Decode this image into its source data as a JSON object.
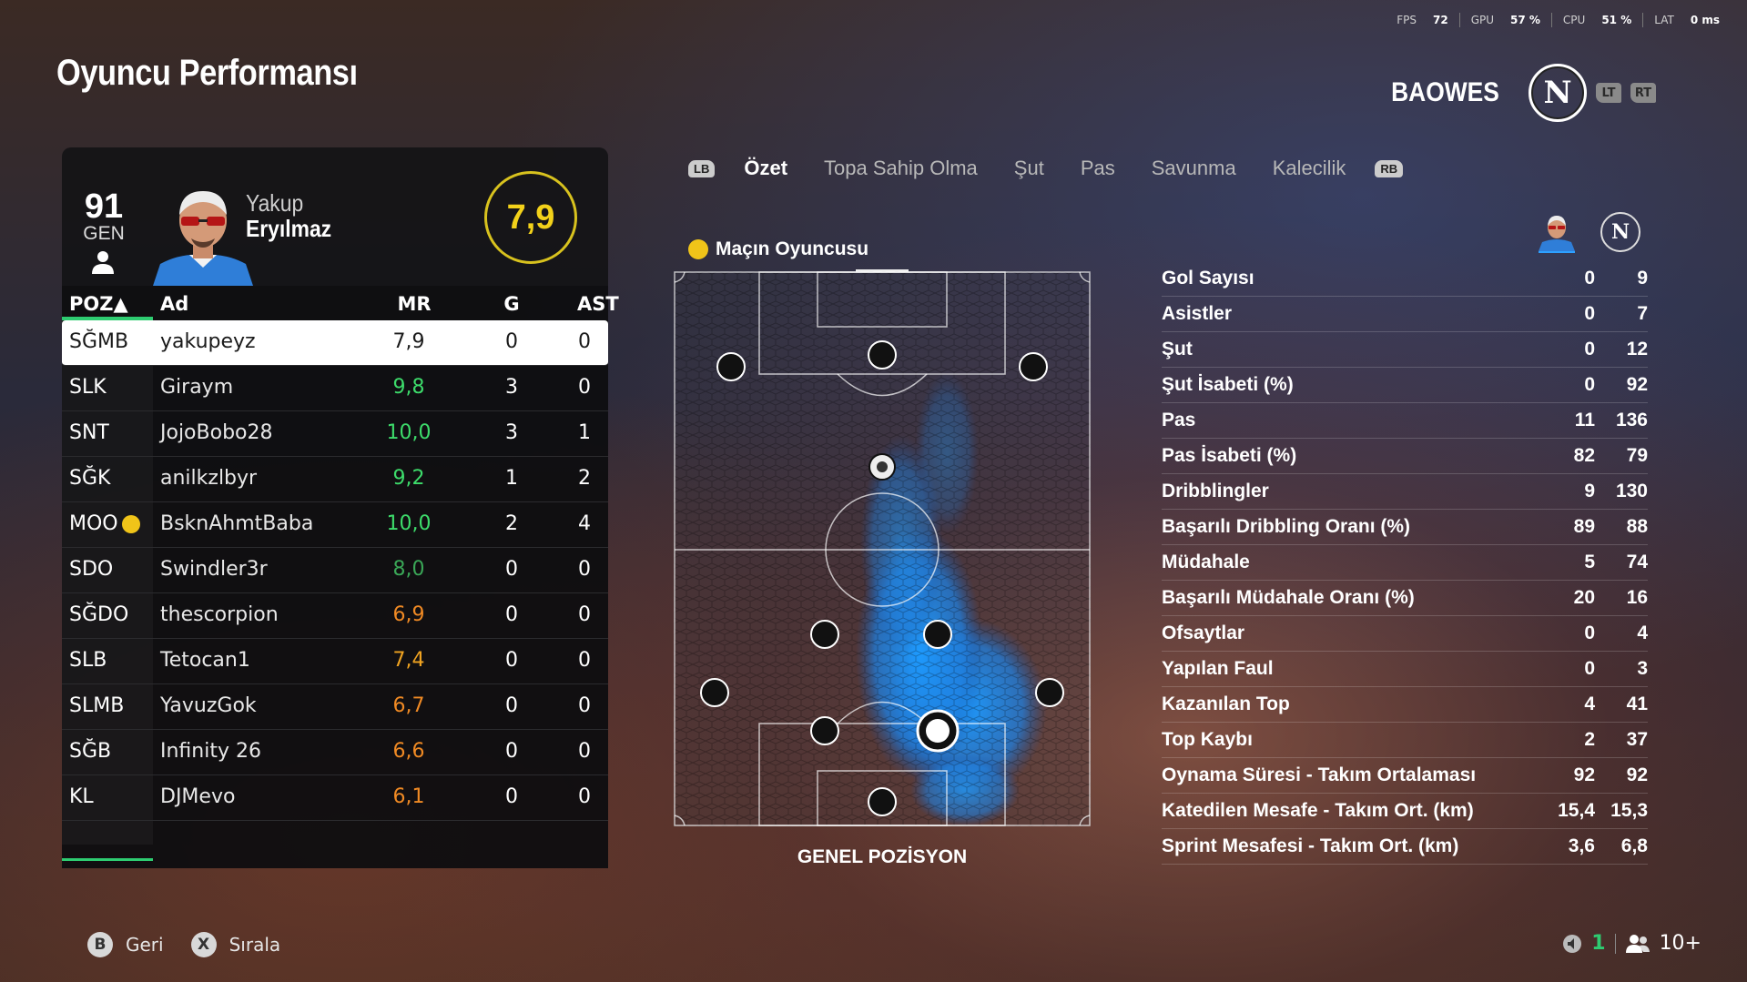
{
  "perf": {
    "fps_label": "FPS",
    "fps": "72",
    "gpu_label": "GPU",
    "gpu": "57 %",
    "cpu_label": "CPU",
    "cpu": "51 %",
    "lat_label": "LAT",
    "lat": "0 ms"
  },
  "page_title": "Oyuncu Performansı",
  "club": {
    "name": "BAOWES",
    "logo_letter": "N",
    "lt": "LT",
    "rt": "RT"
  },
  "player": {
    "overall": "91",
    "overall_label": "GEN",
    "first_name": "Yakup",
    "last_name": "Eryılmaz",
    "rating": "7,9"
  },
  "table": {
    "headers": {
      "pos": "POZ▲",
      "name": "Ad",
      "mr": "MR",
      "g": "G",
      "ast": "AST"
    },
    "rows": [
      {
        "pos": "SĞMB",
        "name": "yakupeyz",
        "mr": "7,9",
        "g": "0",
        "ast": "0",
        "color": "#1a1a1a"
      },
      {
        "pos": "SLK",
        "name": "Giraym",
        "mr": "9,8",
        "g": "3",
        "ast": "0",
        "color": "#3ddc6b"
      },
      {
        "pos": "SNT",
        "name": "JojoBobo28",
        "mr": "10,0",
        "g": "3",
        "ast": "1",
        "color": "#3ddc6b"
      },
      {
        "pos": "SĞK",
        "name": "anilkzlbyr",
        "mr": "9,2",
        "g": "1",
        "ast": "2",
        "color": "#3ddc6b"
      },
      {
        "pos": "MOO",
        "name": "BsknAhmtBaba",
        "mr": "10,0",
        "g": "2",
        "ast": "4",
        "color": "#3ddc6b"
      },
      {
        "pos": "SDO",
        "name": "Swindler3r",
        "mr": "8,0",
        "g": "0",
        "ast": "0",
        "color": "#3aa757"
      },
      {
        "pos": "SĞDO",
        "name": "thescorpion",
        "mr": "6,9",
        "g": "0",
        "ast": "0",
        "color": "#f08a24"
      },
      {
        "pos": "SLB",
        "name": "Tetocan1",
        "mr": "7,4",
        "g": "0",
        "ast": "0",
        "color": "#f0a321"
      },
      {
        "pos": "SLMB",
        "name": "YavuzGok",
        "mr": "6,7",
        "g": "0",
        "ast": "0",
        "color": "#f08a24"
      },
      {
        "pos": "SĞB",
        "name": "Infinity 26",
        "mr": "6,6",
        "g": "0",
        "ast": "0",
        "color": "#f08a24"
      },
      {
        "pos": "KL",
        "name": "DJMevo",
        "mr": "6,1",
        "g": "0",
        "ast": "0",
        "color": "#f08a24"
      }
    ]
  },
  "tabs": {
    "lb": "LB",
    "rb": "RB",
    "items": [
      "Özet",
      "Topa Sahip Olma",
      "Şut",
      "Pas",
      "Savunma",
      "Kalecilik"
    ]
  },
  "motm_label": "Maçın Oyuncusu",
  "pitch_label": "GENEL POZİSYON",
  "stats": [
    {
      "label": "Gol Sayısı",
      "player": "0",
      "team": "9"
    },
    {
      "label": "Asistler",
      "player": "0",
      "team": "7"
    },
    {
      "label": "Şut",
      "player": "0",
      "team": "12"
    },
    {
      "label": "Şut İsabeti (%)",
      "player": "0",
      "team": "92"
    },
    {
      "label": "Pas",
      "player": "11",
      "team": "136"
    },
    {
      "label": "Pas İsabeti (%)",
      "player": "82",
      "team": "79"
    },
    {
      "label": "Dribblingler",
      "player": "9",
      "team": "130"
    },
    {
      "label": "Başarılı Dribbling Oranı (%)",
      "player": "89",
      "team": "88"
    },
    {
      "label": "Müdahale",
      "player": "5",
      "team": "74"
    },
    {
      "label": "Başarılı Müdahale Oranı (%)",
      "player": "20",
      "team": "16"
    },
    {
      "label": "Ofsaytlar",
      "player": "0",
      "team": "4"
    },
    {
      "label": "Yapılan Faul",
      "player": "0",
      "team": "3"
    },
    {
      "label": "Kazanılan Top",
      "player": "4",
      "team": "41"
    },
    {
      "label": "Top Kaybı",
      "player": "2",
      "team": "37"
    },
    {
      "label": "Oynama Süresi - Takım Ortalaması",
      "player": "92",
      "team": "92"
    },
    {
      "label": "Katedilen Mesafe - Takım Ort. (km)",
      "player": "15,4",
      "team": "15,3"
    },
    {
      "label": "Sprint Mesafesi - Takım Ort. (km)",
      "player": "3,6",
      "team": "6,8"
    }
  ],
  "bottom": {
    "back_key": "B",
    "back_label": "Geri",
    "sort_key": "X",
    "sort_label": "Sırala",
    "players_count": "1",
    "viewers": "10+"
  },
  "colors": {
    "accent_green": "#2ecc71",
    "rating_yellow": "#f2d11a",
    "heat_blue": "#1e90ff"
  }
}
